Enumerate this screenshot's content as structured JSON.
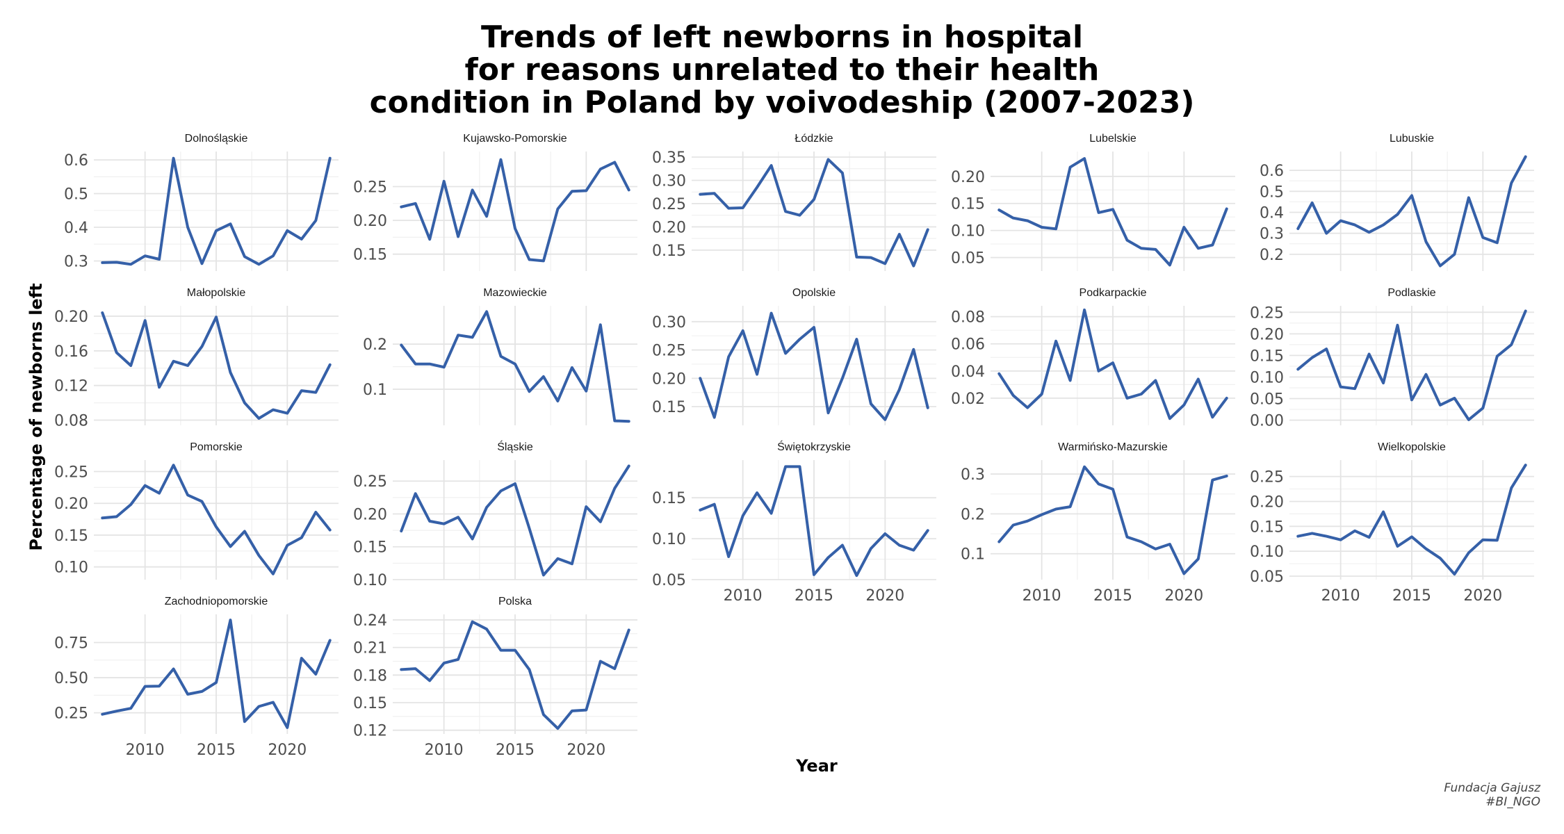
{
  "title_lines": [
    "Trends of left newborns in hospital",
    "for reasons unrelated to their health",
    "condition in Poland by voivodeship (2007-2023)"
  ],
  "caption_lines": [
    "Fundacja Gajusz",
    "#BI_NGO"
  ],
  "chart_data": {
    "type": "line",
    "title": "Trends of left newborns in hospital for reasons unrelated to their health condition in Poland by voivodeship (2007-2023)",
    "xlabel": "Year",
    "ylabel": "Percentage of newborns left",
    "line_color": "#3560A8",
    "grid": true,
    "shared_x": true,
    "free_y": true,
    "x": [
      2007,
      2008,
      2009,
      2010,
      2011,
      2012,
      2013,
      2014,
      2015,
      2016,
      2017,
      2018,
      2019,
      2020,
      2021,
      2022,
      2023
    ],
    "xticks": [
      2010,
      2015,
      2020
    ],
    "panels": [
      {
        "name": "Dolnośląskie",
        "yticks": [
          0.3,
          0.4,
          0.5,
          0.6
        ],
        "ytick_labels": [
          "0.3",
          "0.4",
          "0.5",
          "0.6"
        ],
        "ylim": [
          0.27,
          0.625
        ],
        "values": [
          0.295,
          0.296,
          0.29,
          0.315,
          0.305,
          0.605,
          0.4,
          0.292,
          0.39,
          0.41,
          0.313,
          0.29,
          0.315,
          0.39,
          0.365,
          0.42,
          0.605
        ]
      },
      {
        "name": "Kujawsko-Pomorskie",
        "yticks": [
          0.15,
          0.2,
          0.25
        ],
        "ytick_labels": [
          "0.15",
          "0.20",
          "0.25"
        ],
        "ylim": [
          0.125,
          0.302
        ],
        "values": [
          0.22,
          0.225,
          0.172,
          0.258,
          0.176,
          0.245,
          0.206,
          0.29,
          0.188,
          0.142,
          0.14,
          0.217,
          0.243,
          0.244,
          0.276,
          0.286,
          0.245
        ]
      },
      {
        "name": "Łódzkie",
        "yticks": [
          0.15,
          0.2,
          0.25,
          0.3,
          0.35
        ],
        "ytick_labels": [
          "0.15",
          "0.20",
          "0.25",
          "0.30",
          "0.35"
        ],
        "ylim": [
          0.105,
          0.362
        ],
        "values": [
          0.27,
          0.272,
          0.24,
          0.241,
          0.285,
          0.332,
          0.233,
          0.225,
          0.259,
          0.345,
          0.316,
          0.135,
          0.134,
          0.121,
          0.184,
          0.116,
          0.194
        ]
      },
      {
        "name": "Lubelskie",
        "yticks": [
          0.05,
          0.1,
          0.15,
          0.2
        ],
        "ytick_labels": [
          "0.05",
          "0.10",
          "0.15",
          "0.20"
        ],
        "ylim": [
          0.025,
          0.246
        ],
        "values": [
          0.138,
          0.123,
          0.118,
          0.106,
          0.103,
          0.217,
          0.233,
          0.133,
          0.139,
          0.082,
          0.067,
          0.065,
          0.036,
          0.106,
          0.067,
          0.073,
          0.14
        ]
      },
      {
        "name": "Lubuskie",
        "yticks": [
          0.2,
          0.3,
          0.4,
          0.5,
          0.6
        ],
        "ytick_labels": [
          "0.2",
          "0.3",
          "0.4",
          "0.5",
          "0.6"
        ],
        "ylim": [
          0.12,
          0.69
        ],
        "values": [
          0.322,
          0.445,
          0.3,
          0.36,
          0.34,
          0.305,
          0.34,
          0.39,
          0.48,
          0.26,
          0.145,
          0.2,
          0.47,
          0.28,
          0.255,
          0.54,
          0.665
        ]
      },
      {
        "name": "Małopolskie",
        "yticks": [
          0.08,
          0.12,
          0.16,
          0.2
        ],
        "ytick_labels": [
          "0.08",
          "0.12",
          "0.16",
          "0.20"
        ],
        "ylim": [
          0.074,
          0.212
        ],
        "values": [
          0.204,
          0.158,
          0.143,
          0.195,
          0.118,
          0.148,
          0.143,
          0.165,
          0.199,
          0.135,
          0.1,
          0.082,
          0.092,
          0.088,
          0.114,
          0.112,
          0.144
        ]
      },
      {
        "name": "Mazowieckie",
        "yticks": [
          0.1,
          0.2
        ],
        "ytick_labels": [
          "0.1",
          "0.2"
        ],
        "ylim": [
          0.02,
          0.285
        ],
        "values": [
          0.198,
          0.156,
          0.156,
          0.149,
          0.22,
          0.215,
          0.272,
          0.173,
          0.156,
          0.095,
          0.128,
          0.074,
          0.148,
          0.096,
          0.243,
          0.03,
          0.029
        ]
      },
      {
        "name": "Opolskie",
        "yticks": [
          0.15,
          0.2,
          0.25,
          0.3
        ],
        "ytick_labels": [
          "0.15",
          "0.20",
          "0.25",
          "0.30"
        ],
        "ylim": [
          0.117,
          0.328
        ],
        "values": [
          0.2,
          0.131,
          0.238,
          0.284,
          0.207,
          0.315,
          0.244,
          0.269,
          0.29,
          0.139,
          0.2,
          0.269,
          0.155,
          0.127,
          0.18,
          0.251,
          0.148
        ]
      },
      {
        "name": "Podkarpackie",
        "yticks": [
          0.02,
          0.04,
          0.06,
          0.08
        ],
        "ytick_labels": [
          "0.02",
          "0.04",
          "0.06",
          "0.08"
        ],
        "ylim": [
          0.0,
          0.088
        ],
        "values": [
          0.038,
          0.022,
          0.013,
          0.023,
          0.062,
          0.033,
          0.085,
          0.04,
          0.046,
          0.02,
          0.023,
          0.033,
          0.005,
          0.015,
          0.034,
          0.006,
          0.02
        ]
      },
      {
        "name": "Podlaskie",
        "yticks": [
          0.0,
          0.05,
          0.1,
          0.15,
          0.2,
          0.25
        ],
        "ytick_labels": [
          "0.00",
          "0.05",
          "0.10",
          "0.15",
          "0.20",
          "0.25"
        ],
        "ylim": [
          -0.012,
          0.265
        ],
        "values": [
          0.118,
          0.145,
          0.165,
          0.077,
          0.073,
          0.153,
          0.086,
          0.22,
          0.047,
          0.106,
          0.035,
          0.051,
          0.001,
          0.028,
          0.148,
          0.175,
          0.253
        ]
      },
      {
        "name": "Pomorskie",
        "yticks": [
          0.1,
          0.15,
          0.2,
          0.25
        ],
        "ytick_labels": [
          "0.10",
          "0.15",
          "0.20",
          "0.25"
        ],
        "ylim": [
          0.08,
          0.268
        ],
        "values": [
          0.177,
          0.179,
          0.198,
          0.228,
          0.216,
          0.26,
          0.213,
          0.203,
          0.163,
          0.132,
          0.156,
          0.118,
          0.089,
          0.134,
          0.146,
          0.186,
          0.158
        ]
      },
      {
        "name": "Śląskie",
        "yticks": [
          0.1,
          0.15,
          0.2,
          0.25
        ],
        "ytick_labels": [
          "0.10",
          "0.15",
          "0.20",
          "0.25"
        ],
        "ylim": [
          0.1,
          0.282
        ],
        "values": [
          0.174,
          0.231,
          0.189,
          0.185,
          0.195,
          0.162,
          0.21,
          0.235,
          0.246,
          0.178,
          0.107,
          0.132,
          0.124,
          0.211,
          0.188,
          0.239,
          0.273
        ]
      },
      {
        "name": "Świętokrzyskie",
        "yticks": [
          0.05,
          0.1,
          0.15
        ],
        "ytick_labels": [
          "0.05",
          "0.10",
          "0.15"
        ],
        "ylim": [
          0.05,
          0.196
        ],
        "values": [
          0.135,
          0.142,
          0.078,
          0.128,
          0.156,
          0.131,
          0.188,
          0.188,
          0.056,
          0.077,
          0.092,
          0.055,
          0.088,
          0.106,
          0.092,
          0.086,
          0.11
        ]
      },
      {
        "name": "Warmińsko-Mazurskie",
        "yticks": [
          0.1,
          0.2,
          0.3
        ],
        "ytick_labels": [
          "0.1",
          "0.2",
          "0.3"
        ],
        "ylim": [
          0.035,
          0.335
        ],
        "values": [
          0.13,
          0.172,
          0.182,
          0.198,
          0.212,
          0.218,
          0.318,
          0.275,
          0.262,
          0.142,
          0.13,
          0.112,
          0.124,
          0.05,
          0.087,
          0.285,
          0.295
        ]
      },
      {
        "name": "Wielkopolskie",
        "yticks": [
          0.05,
          0.1,
          0.15,
          0.2,
          0.25
        ],
        "ytick_labels": [
          "0.05",
          "0.10",
          "0.15",
          "0.20",
          "0.25"
        ],
        "ylim": [
          0.043,
          0.283
        ],
        "values": [
          0.13,
          0.136,
          0.13,
          0.123,
          0.141,
          0.128,
          0.179,
          0.11,
          0.129,
          0.105,
          0.086,
          0.054,
          0.097,
          0.123,
          0.122,
          0.227,
          0.273
        ]
      },
      {
        "name": "Zachodniopomorskie",
        "yticks": [
          0.25,
          0.5,
          0.75
        ],
        "ytick_labels": [
          "0.25",
          "0.50",
          "0.75"
        ],
        "ylim": [
          0.1,
          0.95
        ],
        "values": [
          0.24,
          0.262,
          0.282,
          0.438,
          0.44,
          0.562,
          0.382,
          0.402,
          0.465,
          0.91,
          0.188,
          0.295,
          0.325,
          0.145,
          0.638,
          0.525,
          0.765
        ]
      },
      {
        "name": "Polska",
        "yticks": [
          0.12,
          0.15,
          0.18,
          0.21,
          0.24
        ],
        "ytick_labels": [
          "0.12",
          "0.15",
          "0.18",
          "0.21",
          "0.24"
        ],
        "ylim": [
          0.116,
          0.246
        ],
        "values": [
          0.186,
          0.187,
          0.174,
          0.193,
          0.197,
          0.238,
          0.23,
          0.207,
          0.207,
          0.186,
          0.137,
          0.122,
          0.141,
          0.142,
          0.195,
          0.187,
          0.229
        ]
      }
    ]
  }
}
